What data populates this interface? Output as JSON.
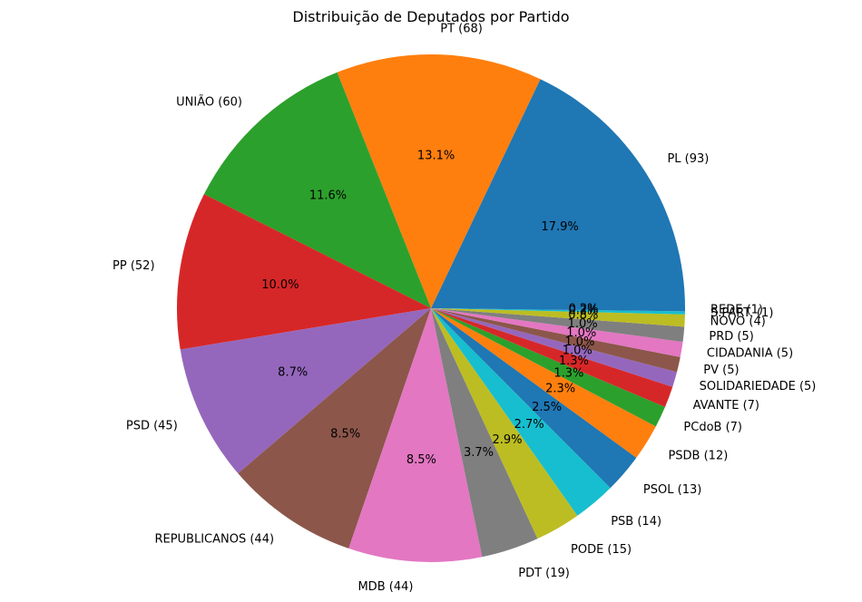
{
  "chart_data": {
    "type": "pie",
    "title": "Distribuição de Deputados por Partido",
    "start_angle_deg": 0,
    "direction": "counterclockwise",
    "slices": [
      {
        "label": "PL (93)",
        "value": 93,
        "pct": "17.9%",
        "color": "#1f77b4"
      },
      {
        "label": "PT (68)",
        "value": 68,
        "pct": "13.1%",
        "color": "#ff7f0e"
      },
      {
        "label": "UNIÃO (60)",
        "value": 60,
        "pct": "11.6%",
        "color": "#2ca02c"
      },
      {
        "label": "PP (52)",
        "value": 52,
        "pct": "10.0%",
        "color": "#d62728"
      },
      {
        "label": "PSD (45)",
        "value": 45,
        "pct": "8.7%",
        "color": "#9467bd"
      },
      {
        "label": "REPUBLICANOS (44)",
        "value": 44,
        "pct": "8.5%",
        "color": "#8c564b"
      },
      {
        "label": "MDB (44)",
        "value": 44,
        "pct": "8.5%",
        "color": "#e377c2"
      },
      {
        "label": "PDT (19)",
        "value": 19,
        "pct": "3.7%",
        "color": "#7f7f7f"
      },
      {
        "label": "PODE (15)",
        "value": 15,
        "pct": "2.9%",
        "color": "#bcbd22"
      },
      {
        "label": "PSB (14)",
        "value": 14,
        "pct": "2.7%",
        "color": "#17becf"
      },
      {
        "label": "PSOL (13)",
        "value": 13,
        "pct": "2.5%",
        "color": "#1f77b4"
      },
      {
        "label": "PSDB (12)",
        "value": 12,
        "pct": "2.3%",
        "color": "#ff7f0e"
      },
      {
        "label": "PCdoB (7)",
        "value": 7,
        "pct": "1.3%",
        "color": "#2ca02c"
      },
      {
        "label": "AVANTE (7)",
        "value": 7,
        "pct": "1.3%",
        "color": "#d62728"
      },
      {
        "label": "SOLIDARIEDADE (5)",
        "value": 5,
        "pct": "1.0%",
        "color": "#9467bd"
      },
      {
        "label": "PV (5)",
        "value": 5,
        "pct": "1.0%",
        "color": "#8c564b"
      },
      {
        "label": "CIDADANIA (5)",
        "value": 5,
        "pct": "1.0%",
        "color": "#e377c2"
      },
      {
        "label": "PRD (5)",
        "value": 5,
        "pct": "1.0%",
        "color": "#7f7f7f"
      },
      {
        "label": "NOVO (4)",
        "value": 4,
        "pct": "0.8%",
        "color": "#bcbd22"
      },
      {
        "label": "S.PART. (1)",
        "value": 1,
        "pct": "0.2%",
        "color": "#17becf"
      },
      {
        "label": "REDE (1)",
        "value": 1,
        "pct": "0.2%",
        "color": "#1f77b4"
      }
    ]
  }
}
